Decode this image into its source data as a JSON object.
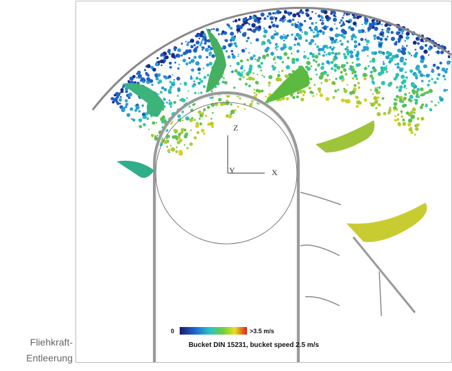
{
  "caption": {
    "line1": "Fliehkraft-",
    "line2": "Entleerung"
  },
  "figure": {
    "axis_z": "Z",
    "axis_y": "Y",
    "axis_x": "X",
    "colorbar_min": "0",
    "colorbar_max": ">3.5 m/s",
    "title": "Bucket DIN 15231, bucket speed 2.5 m/s"
  }
}
